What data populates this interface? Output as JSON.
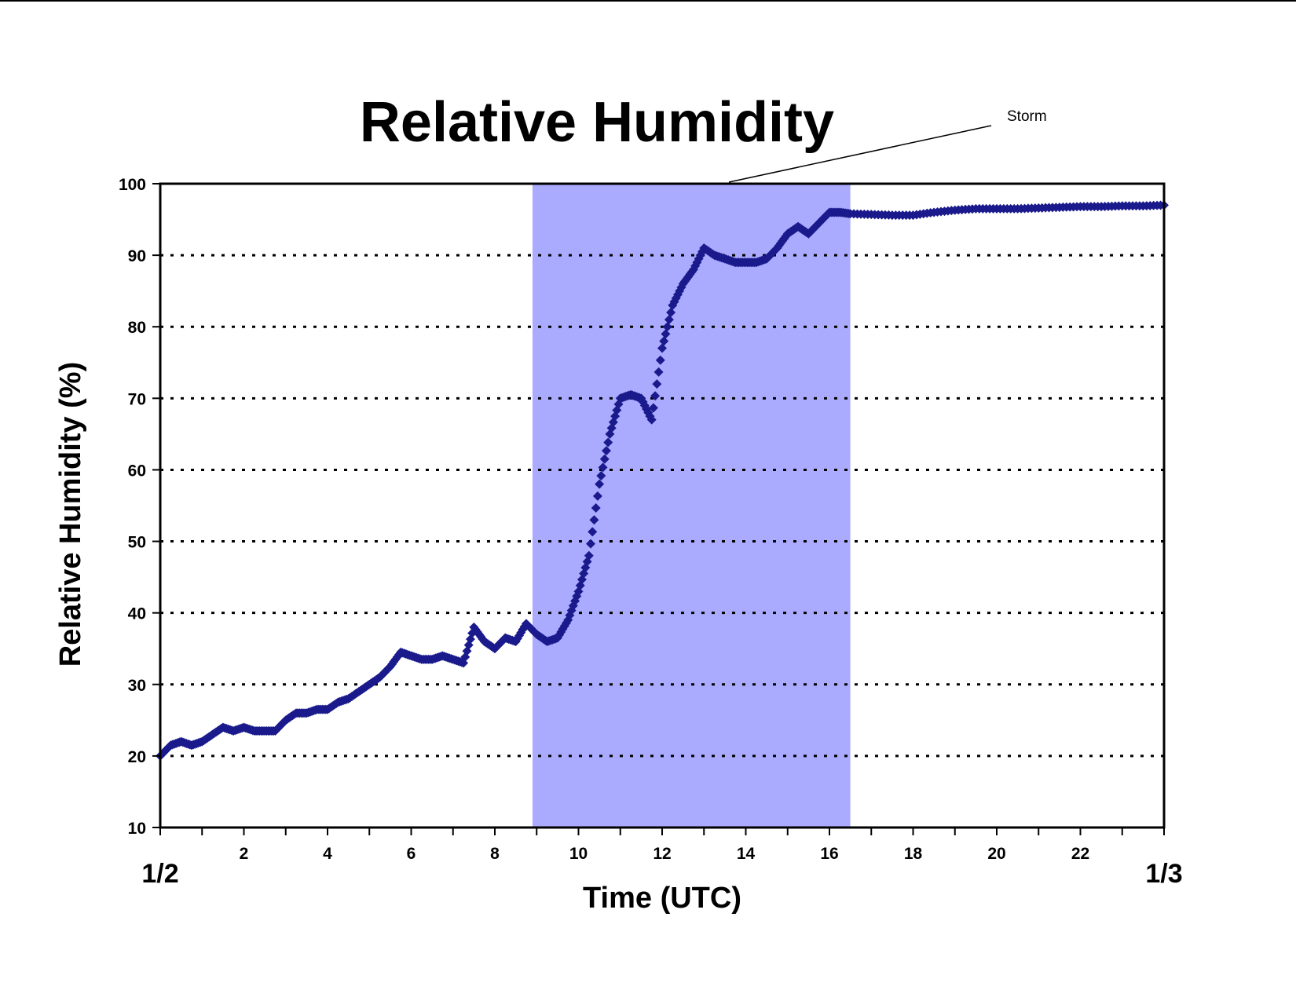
{
  "chart_data": {
    "type": "scatter",
    "title": "Relative Humidity",
    "xlabel": "Time (UTC)",
    "ylabel": "Relative Humidity (%)",
    "xlim": [
      0,
      24
    ],
    "ylim": [
      10,
      100
    ],
    "x_ticks": [
      2,
      4,
      6,
      8,
      10,
      12,
      14,
      16,
      18,
      20,
      22
    ],
    "y_ticks": [
      10,
      20,
      30,
      40,
      50,
      60,
      70,
      80,
      90,
      100
    ],
    "x_tick_labels": [
      "2",
      "4",
      "6",
      "8",
      "10",
      "12",
      "14",
      "16",
      "18",
      "20",
      "22"
    ],
    "y_tick_labels": [
      "10",
      "20",
      "30",
      "40",
      "50",
      "60",
      "70",
      "80",
      "90",
      "100"
    ],
    "date_labels": {
      "start": "1/2",
      "end": "1/3"
    },
    "grid": "horizontal dotted at 20-90",
    "storm_period": {
      "label": "Storm",
      "start": 8.9,
      "end": 16.5,
      "color": "#aaaaff"
    },
    "marker_color": "#1a1a8c",
    "series": [
      {
        "x": [
          0.0,
          0.25,
          0.5,
          0.75,
          1.0,
          1.25,
          1.5,
          1.75,
          2.0,
          2.25,
          2.5,
          2.75,
          3.0,
          3.25,
          3.5,
          3.75,
          4.0,
          4.25,
          4.5,
          4.75,
          5.0,
          5.25,
          5.5,
          5.75,
          6.0,
          6.25,
          6.5,
          6.75,
          7.0,
          7.25,
          7.5,
          7.75,
          8.0,
          8.25,
          8.5,
          8.75,
          9.0,
          9.25,
          9.5,
          9.75,
          10.0,
          10.25,
          10.5,
          10.75,
          11.0,
          11.25,
          11.5,
          11.75,
          12.0,
          12.25,
          12.5,
          12.75,
          13.0,
          13.25,
          13.5,
          13.75,
          14.0,
          14.25,
          14.5,
          14.75,
          15.0,
          15.25,
          15.5,
          15.75,
          16.0,
          16.25,
          16.5,
          17.0,
          17.5,
          18.0,
          18.5,
          19.0,
          19.5,
          20.0,
          20.5,
          21.0,
          21.5,
          22.0,
          22.5,
          23.0,
          23.5,
          24.0
        ],
        "y": [
          20,
          21.5,
          22,
          21.5,
          22,
          23,
          24,
          23.5,
          24,
          23.5,
          23.5,
          23.5,
          25,
          26,
          26,
          26.5,
          26.5,
          27.5,
          28,
          29,
          30,
          31,
          32.5,
          34.5,
          34,
          33.5,
          33.5,
          34,
          33.5,
          33,
          38,
          36,
          35,
          36.5,
          36,
          38.5,
          37,
          36,
          36.5,
          39,
          43,
          48,
          58,
          65,
          70,
          70.5,
          70,
          67,
          77,
          83,
          86,
          88,
          91,
          90,
          89.5,
          89,
          89,
          89,
          89.5,
          91,
          93,
          94,
          93,
          94.5,
          96,
          96,
          95.8,
          95.7,
          95.6,
          95.6,
          96,
          96.3,
          96.5,
          96.5,
          96.5,
          96.6,
          96.7,
          96.8,
          96.8,
          96.9,
          96.9,
          97
        ]
      }
    ]
  }
}
